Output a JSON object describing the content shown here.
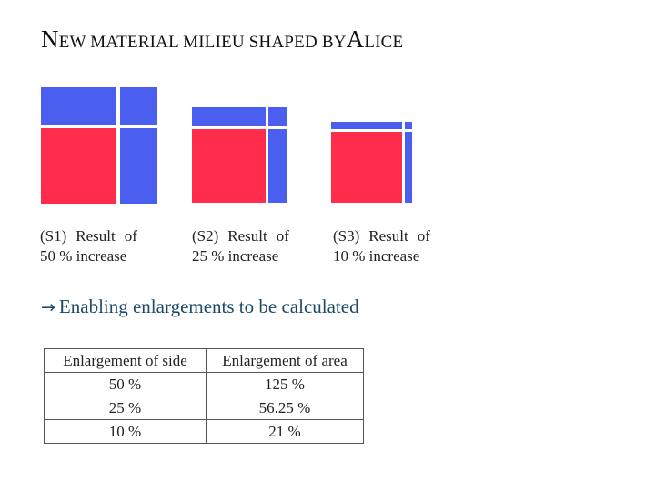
{
  "title": {
    "first_big": "N",
    "part1": "EW MATERIAL MILIEU SHAPED BY",
    "second_big": "A",
    "part2": "LICE"
  },
  "colors": {
    "blue": "#4a5ef0",
    "red": "#ff2d4b"
  },
  "figures": [
    {
      "label": "(S1)",
      "result_of": "Result",
      "of": "of",
      "line2": "50 % increase",
      "increase": 0.5
    },
    {
      "label": "(S2)",
      "result_of": "Result",
      "of": "of",
      "line2": "25 % increase",
      "increase": 0.25
    },
    {
      "label": "(S3)",
      "result_of": "Result",
      "of": "of",
      "line2": "10 % increase",
      "increase": 0.1
    }
  ],
  "subheading": {
    "arrow_icon": "right-arrow-icon",
    "text": "Enabling enlargements to be calculated"
  },
  "table": {
    "headers": [
      "Enlargement of side",
      "Enlargement of area"
    ],
    "rows": [
      [
        "50 %",
        "125 %"
      ],
      [
        "25 %",
        "56.25 %"
      ],
      [
        "10 %",
        "21 %"
      ]
    ]
  }
}
